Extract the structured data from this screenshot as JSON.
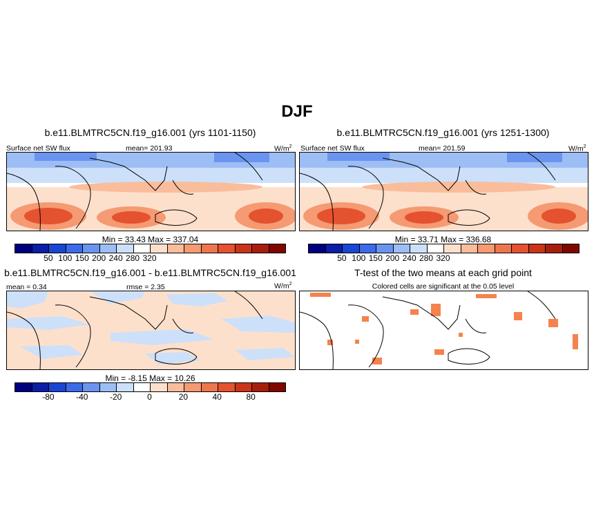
{
  "figure_title": "DJF",
  "panels": {
    "top_left": {
      "title": "b.e11.BLMTRC5CN.f19_g16.001 (yrs 1101-1150)",
      "var_label": "Surface net SW flux",
      "mean_text": "mean= 201.93",
      "units": "W/m",
      "units_sup": "2",
      "minmax": "Min =  33.43 Max = 337.04"
    },
    "top_right": {
      "title": "b.e11.BLMTRC5CN.f19_g16.001 (yrs 1251-1300)",
      "var_label": "Surface net SW flux",
      "mean_text": "mean= 201.59",
      "units": "W/m",
      "units_sup": "2",
      "minmax": "Min =  33.71 Max = 336.68"
    },
    "bottom_left": {
      "title": "b.e11.BLMTRC5CN.f19_g16.001 - b.e11.BLMTRC5CN.f19_g16.001",
      "mean_text": "mean =   0.34",
      "rmse_text": "rmse =   2.35",
      "units": "W/m",
      "units_sup": "2",
      "minmax": "Min =  -8.15 Max =  10.26"
    },
    "bottom_right": {
      "title": "T-test of the two means at each grid point",
      "subtitle": "Colored cells are significant at the 0.05 level"
    }
  },
  "colorbars": {
    "flux": {
      "colors": [
        "#00007f",
        "#0a1fa5",
        "#1a46d4",
        "#3c6ae8",
        "#6a94ef",
        "#9dbdf5",
        "#cde0fa",
        "#ffffff",
        "#fde0cc",
        "#f9bd9c",
        "#f59a72",
        "#ee764d",
        "#e45230",
        "#ca3419",
        "#a81e0d",
        "#820600"
      ],
      "tick_labels": [
        "50",
        "100",
        "150",
        "200",
        "240",
        "280",
        "320"
      ],
      "tick_positions": [
        2,
        3,
        4,
        5,
        6,
        7,
        8
      ]
    },
    "diff": {
      "colors": [
        "#00007f",
        "#0a1fa5",
        "#1a46d4",
        "#3c6ae8",
        "#6a94ef",
        "#9dbdf5",
        "#cde0fa",
        "#ffffff",
        "#fde0cc",
        "#f9bd9c",
        "#f59a72",
        "#ee764d",
        "#e45230",
        "#ca3419",
        "#a81e0d",
        "#820600"
      ],
      "tick_labels": [
        "-80",
        "-40",
        "-20",
        "0",
        "20",
        "40",
        "80"
      ],
      "tick_positions": [
        2,
        4,
        6,
        8,
        10,
        12,
        14
      ]
    }
  },
  "colors": {
    "land_fill_none": "#ffffff",
    "significance": "#f4834d",
    "diff_light_blue": "#cde0fa",
    "diff_light_orange": "#fde0cc"
  }
}
